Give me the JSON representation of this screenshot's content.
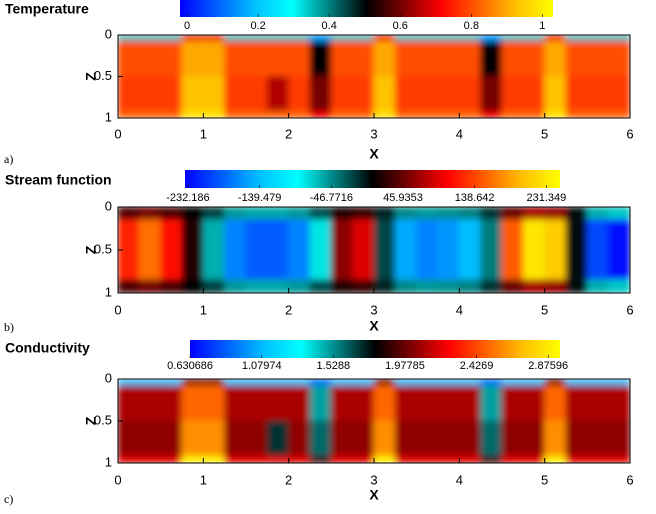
{
  "chart_data": [
    {
      "type": "heatmap",
      "title": "Temperature",
      "xlabel": "X",
      "ylabel": "Z",
      "panel_label": "a)",
      "xlim": [
        0,
        6
      ],
      "ylim": [
        1,
        0
      ],
      "xticks": [
        0,
        1,
        2,
        3,
        4,
        5,
        6
      ],
      "yticks": [
        0,
        0.5,
        1
      ],
      "colormap": [
        "#0000ff",
        "#0060ff",
        "#00c0ff",
        "#00ffff",
        "#008080",
        "#000000",
        "#800000",
        "#ff0000",
        "#ff6000",
        "#ffc000",
        "#ffff00"
      ],
      "clim": [
        -0.02,
        1.03
      ],
      "cticks": [
        0,
        0.2,
        0.4,
        0.6,
        0.8,
        1
      ],
      "xbins": [
        0,
        0.25,
        0.5,
        0.75,
        1,
        1.25,
        1.5,
        1.75,
        2,
        2.25,
        2.5,
        2.75,
        3,
        3.25,
        3.5,
        3.75,
        4,
        4.25,
        4.5,
        4.75,
        5,
        5.25,
        5.5,
        5.75,
        6
      ],
      "zbins": [
        0,
        0.08,
        0.5,
        0.92,
        1
      ],
      "field": [
        [
          0.35,
          0.35,
          0.35,
          0.7,
          0.7,
          0.35,
          0.35,
          0.35,
          0.35,
          0.15,
          0.35,
          0.35,
          0.7,
          0.35,
          0.35,
          0.35,
          0.35,
          0.15,
          0.35,
          0.35,
          0.7,
          0.35,
          0.35,
          0.35
        ],
        [
          0.8,
          0.8,
          0.8,
          0.9,
          0.9,
          0.8,
          0.8,
          0.8,
          0.8,
          0.5,
          0.8,
          0.8,
          0.9,
          0.8,
          0.8,
          0.8,
          0.8,
          0.5,
          0.8,
          0.8,
          0.9,
          0.8,
          0.8,
          0.8
        ],
        [
          0.78,
          0.78,
          0.78,
          0.93,
          0.93,
          0.78,
          0.78,
          0.65,
          0.78,
          0.6,
          0.78,
          0.78,
          0.93,
          0.78,
          0.78,
          0.78,
          0.78,
          0.6,
          0.78,
          0.78,
          0.93,
          0.78,
          0.78,
          0.78
        ],
        [
          0.82,
          0.82,
          0.82,
          0.98,
          0.98,
          0.82,
          0.82,
          0.82,
          0.82,
          0.7,
          0.82,
          0.82,
          0.98,
          0.82,
          0.82,
          0.82,
          0.82,
          0.7,
          0.82,
          0.82,
          0.98,
          0.82,
          0.82,
          0.82
        ]
      ]
    },
    {
      "type": "heatmap",
      "title": "Stream function",
      "xlabel": "X",
      "ylabel": "Z",
      "panel_label": "b)",
      "xlim": [
        0,
        6
      ],
      "ylim": [
        1,
        0
      ],
      "xticks": [
        0,
        1,
        2,
        3,
        4,
        5,
        6
      ],
      "yticks": [
        0,
        0.5,
        1
      ],
      "colormap": [
        "#0000ff",
        "#0060ff",
        "#00c0ff",
        "#00ffff",
        "#008080",
        "#000000",
        "#800000",
        "#ff0000",
        "#ff6000",
        "#ffc000",
        "#ffff00"
      ],
      "clim": [
        -236,
        249
      ],
      "cticks": [
        -232.186,
        -139.479,
        -46.7716,
        45.9353,
        138.642,
        231.349
      ],
      "xbins": [
        0,
        0.25,
        0.5,
        0.75,
        1,
        1.25,
        1.5,
        1.75,
        2,
        2.25,
        2.5,
        2.75,
        3,
        3.25,
        3.5,
        3.75,
        4,
        4.25,
        4.5,
        4.75,
        5,
        5.25,
        5.5,
        5.75,
        6
      ],
      "zbins": [
        0,
        0.15,
        0.5,
        0.85,
        1
      ],
      "field": [
        [
          36,
          48,
          33,
          6,
          -18,
          -51,
          -57,
          -57,
          -51,
          -24,
          18,
          27,
          -6,
          -45,
          -51,
          -48,
          -42,
          -12,
          45,
          69,
          63,
          0,
          -60,
          -69
        ],
        [
          120,
          160,
          110,
          20,
          -60,
          -170,
          -190,
          -190,
          -170,
          -80,
          60,
          90,
          -20,
          -150,
          -170,
          -160,
          -140,
          -40,
          150,
          230,
          210,
          0,
          -200,
          -230
        ],
        [
          120,
          160,
          110,
          20,
          -60,
          -170,
          -190,
          -190,
          -170,
          -80,
          60,
          90,
          -20,
          -150,
          -170,
          -160,
          -140,
          -40,
          150,
          230,
          210,
          0,
          -200,
          -230
        ],
        [
          36,
          48,
          33,
          6,
          -18,
          -51,
          -57,
          -57,
          -51,
          -24,
          18,
          27,
          -6,
          -45,
          -51,
          -48,
          -42,
          -12,
          45,
          69,
          63,
          0,
          -60,
          -69
        ]
      ]
    },
    {
      "type": "heatmap",
      "title": "Conductivity",
      "xlabel": "X",
      "ylabel": "Z",
      "panel_label": "c)",
      "xlim": [
        0,
        6
      ],
      "ylim": [
        1,
        0
      ],
      "xticks": [
        0,
        1,
        2,
        3,
        4,
        5,
        6
      ],
      "yticks": [
        0,
        0.5,
        1
      ],
      "colormap": [
        "#0000ff",
        "#0060ff",
        "#00c0ff",
        "#00ffff",
        "#008080",
        "#000000",
        "#800000",
        "#ff0000",
        "#ff6000",
        "#ffc000",
        "#ffff00"
      ],
      "clim": [
        0.63,
        2.95
      ],
      "cticks": [
        0.630686,
        1.07974,
        1.5288,
        1.97785,
        2.4269,
        2.87596
      ],
      "xbins": [
        0,
        0.25,
        0.5,
        0.75,
        1,
        1.25,
        1.5,
        1.75,
        2,
        2.25,
        2.5,
        2.75,
        3,
        3.25,
        3.5,
        3.75,
        4,
        4.25,
        4.5,
        4.75,
        5,
        5.25,
        5.5,
        5.75,
        6
      ],
      "zbins": [
        0,
        0.08,
        0.5,
        0.92,
        1
      ],
      "field": [
        [
          1.1,
          1.1,
          1.1,
          2.0,
          2.0,
          1.1,
          1.1,
          1.1,
          1.1,
          0.9,
          1.1,
          1.1,
          2.0,
          1.1,
          1.1,
          1.1,
          1.1,
          0.9,
          1.1,
          1.1,
          2.0,
          1.1,
          1.1,
          1.1
        ],
        [
          2.1,
          2.1,
          2.1,
          2.5,
          2.5,
          2.1,
          2.1,
          2.1,
          2.1,
          1.5,
          2.1,
          2.1,
          2.5,
          2.1,
          2.1,
          2.1,
          2.1,
          1.5,
          2.1,
          2.1,
          2.5,
          2.1,
          2.1,
          2.1
        ],
        [
          2.05,
          2.05,
          2.05,
          2.6,
          2.6,
          2.05,
          2.05,
          1.7,
          2.05,
          1.6,
          2.05,
          2.05,
          2.6,
          2.05,
          2.05,
          2.05,
          2.05,
          1.6,
          2.05,
          2.05,
          2.6,
          2.05,
          2.05,
          2.05
        ],
        [
          2.2,
          2.2,
          2.2,
          2.9,
          2.9,
          2.2,
          2.2,
          2.2,
          2.2,
          1.9,
          2.2,
          2.2,
          2.9,
          2.2,
          2.2,
          2.2,
          2.2,
          1.9,
          2.2,
          2.2,
          2.9,
          2.2,
          2.2,
          2.2
        ]
      ]
    }
  ]
}
